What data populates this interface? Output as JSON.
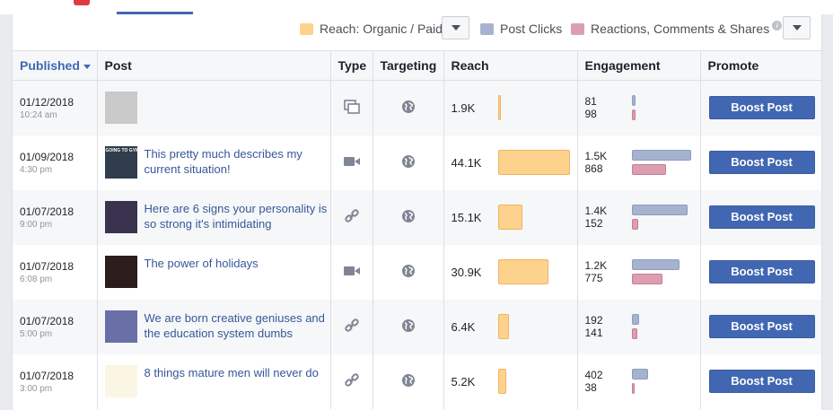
{
  "legend": {
    "reach": {
      "label": "Reach: Organic / Paid",
      "color": "#fcd28d"
    },
    "clicks": {
      "label": "Post Clicks",
      "color": "#a7b3ce"
    },
    "reactions": {
      "label": "Reactions, Comments & Shares",
      "color": "#dc9fb0"
    },
    "info_icon": "info-icon"
  },
  "columns": {
    "published": "Published",
    "post": "Post",
    "type": "Type",
    "targeting": "Targeting",
    "reach": "Reach",
    "engagement": "Engagement",
    "promote": "Promote"
  },
  "rows": [
    {
      "date": "01/12/2018",
      "time": "10:24 am",
      "text": "",
      "type": "album-icon",
      "reach": "1.9K",
      "reach_value": 1900,
      "clicks": "81",
      "clicks_value": 81,
      "reactions": "98",
      "reactions_value": 98,
      "boost": "Boost Post"
    },
    {
      "date": "01/09/2018",
      "time": "4:30 pm",
      "text": "This pretty much describes my current situation!",
      "type": "video-icon",
      "reach": "44.1K",
      "reach_value": 44100,
      "clicks": "1.5K",
      "clicks_value": 1500,
      "reactions": "868",
      "reactions_value": 868,
      "boost": "Boost Post"
    },
    {
      "date": "01/07/2018",
      "time": "9:00 pm",
      "text": "Here are 6 signs your personality is so strong it's intimidating",
      "type": "link-icon",
      "reach": "15.1K",
      "reach_value": 15100,
      "clicks": "1.4K",
      "clicks_value": 1400,
      "reactions": "152",
      "reactions_value": 152,
      "boost": "Boost Post"
    },
    {
      "date": "01/07/2018",
      "time": "6:08 pm",
      "text": "The power of holidays",
      "type": "video-icon",
      "reach": "30.9K",
      "reach_value": 30900,
      "clicks": "1.2K",
      "clicks_value": 1200,
      "reactions": "775",
      "reactions_value": 775,
      "boost": "Boost Post"
    },
    {
      "date": "01/07/2018",
      "time": "5:00 pm",
      "text": "We are born creative geniuses and the education system dumbs",
      "type": "link-icon",
      "reach": "6.4K",
      "reach_value": 6400,
      "clicks": "192",
      "clicks_value": 192,
      "reactions": "141",
      "reactions_value": 141,
      "boost": "Boost Post"
    },
    {
      "date": "01/07/2018",
      "time": "3:00 pm",
      "text": "8 things mature men will never do",
      "type": "link-icon",
      "reach": "5.2K",
      "reach_value": 5200,
      "clicks": "402",
      "clicks_value": 402,
      "reactions": "38",
      "reactions_value": 38,
      "boost": "Boost Post"
    }
  ],
  "thumbs": [
    {
      "caption": "",
      "bg": "#c9c9c9"
    },
    {
      "caption": "GOING TO GYM",
      "bg": "#2f3d4d"
    },
    {
      "caption": "",
      "bg": "#3a3350"
    },
    {
      "caption": "",
      "bg": "#2a1d1c"
    },
    {
      "caption": "",
      "bg": "#6a6fa8"
    },
    {
      "caption": "",
      "bg": "#fbf6e3"
    }
  ]
}
